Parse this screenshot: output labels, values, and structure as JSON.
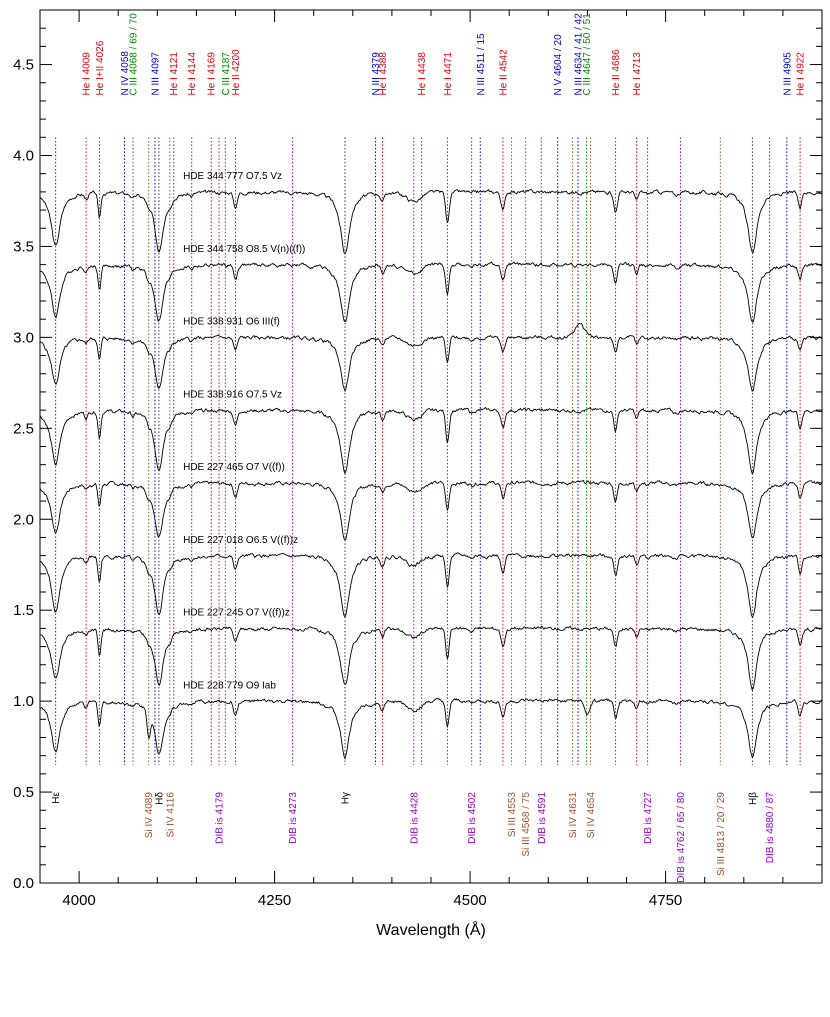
{
  "chart_data": {
    "type": "line",
    "title": "",
    "xlabel": "Wavelength (Å)",
    "ylabel": "",
    "xlim": [
      3950,
      4950
    ],
    "ylim": [
      0.0,
      4.8
    ],
    "x_ticks": [
      4000,
      4250,
      4500,
      4750
    ],
    "x_tick_labels": [
      "4000",
      "4250",
      "4500",
      "4750"
    ],
    "y_ticks": [
      0.0,
      0.5,
      1.0,
      1.5,
      2.0,
      2.5,
      3.0,
      3.5,
      4.0,
      4.5
    ],
    "y_tick_labels": [
      "0.0",
      "0.5",
      "1.0",
      "1.5",
      "2.0",
      "2.5",
      "3.0",
      "3.5",
      "4.0",
      "4.5"
    ],
    "grid": false,
    "legend": "none",
    "series": [
      {
        "name": "HDE 344 777   O7.5 Vz",
        "offset": 3.8,
        "variant": 0
      },
      {
        "name": "HDE 344 758   O8.5 V(n)((f))",
        "offset": 3.4,
        "variant": 1
      },
      {
        "name": "HDE 338 931   O6 III(f)",
        "offset": 3.0,
        "variant": 2
      },
      {
        "name": "HDE 338 916   O7.5 Vz",
        "offset": 2.6,
        "variant": 3
      },
      {
        "name": "HDE 227 465   O7 V((f))",
        "offset": 2.2,
        "variant": 4
      },
      {
        "name": "HDE 227 018   O6.5 V((f))z",
        "offset": 1.8,
        "variant": 5
      },
      {
        "name": "HDE 227 245   O7 V((f))z",
        "offset": 1.4,
        "variant": 6
      },
      {
        "name": "HDE 228 779   O9 Iab",
        "offset": 1.0,
        "variant": 7
      }
    ],
    "balmer_lines": [
      {
        "name": "Hε",
        "wave": 3970
      },
      {
        "name": "Hδ",
        "wave": 4102
      },
      {
        "name": "Hγ",
        "wave": 4340
      },
      {
        "name": "Hβ",
        "wave": 4861
      }
    ],
    "top_lines": [
      {
        "label": "He I 4009",
        "wave": 4009,
        "color": "#e8000b"
      },
      {
        "label": "He I+II 4026",
        "wave": 4026,
        "color": "#e8000b"
      },
      {
        "label": "N IV 4058",
        "wave": 4058,
        "color": "#0000e0"
      },
      {
        "label": "C III 4068 / 69 / 70",
        "wave": 4069,
        "color": "#008a00"
      },
      {
        "label": "N III 4097",
        "wave": 4097,
        "color": "#0000e0"
      },
      {
        "label": "He I 4121",
        "wave": 4121,
        "color": "#e8000b"
      },
      {
        "label": "He I 4144",
        "wave": 4144,
        "color": "#e8000b"
      },
      {
        "label": "He I 4169",
        "wave": 4169,
        "color": "#e8000b"
      },
      {
        "label": "C III 4187",
        "wave": 4187,
        "color": "#008a00"
      },
      {
        "label": "He II 4200",
        "wave": 4200,
        "color": "#e8000b"
      },
      {
        "label": "N III 4379",
        "wave": 4379,
        "color": "#0000e0"
      },
      {
        "label": "He I 4388",
        "wave": 4388,
        "color": "#e8000b"
      },
      {
        "label": "He I 4438",
        "wave": 4438,
        "color": "#e8000b"
      },
      {
        "label": "He I 4471",
        "wave": 4471,
        "color": "#e8000b"
      },
      {
        "label": "N III 4511 / 15",
        "wave": 4513,
        "color": "#0000e0"
      },
      {
        "label": "He II 4542",
        "wave": 4542,
        "color": "#e8000b"
      },
      {
        "label": "N V 4604 / 20",
        "wave": 4612,
        "color": "#0000e0"
      },
      {
        "label": "N III 4634 / 41 / 42",
        "wave": 4638,
        "color": "#0000e0"
      },
      {
        "label": "C III 4647 / 50 / 51",
        "wave": 4649,
        "color": "#008a00"
      },
      {
        "label": "He II 4686",
        "wave": 4686,
        "color": "#e8000b"
      },
      {
        "label": "He I 4713",
        "wave": 4713,
        "color": "#e8000b"
      },
      {
        "label": "N III 4905",
        "wave": 4905,
        "color": "#0000e0"
      },
      {
        "label": "He I 4922",
        "wave": 4922,
        "color": "#e8000b"
      }
    ],
    "bottom_lines": [
      {
        "label": "Si IV 4089",
        "wave": 4089,
        "color": "#a0522d"
      },
      {
        "label": "Si IV 4116",
        "wave": 4116,
        "color": "#a0522d"
      },
      {
        "label": "DIB is 4179",
        "wave": 4179,
        "color": "#9400d3"
      },
      {
        "label": "DIB is 4273",
        "wave": 4273,
        "color": "#9400d3"
      },
      {
        "label": "DIB is 4428",
        "wave": 4428,
        "color": "#9400d3"
      },
      {
        "label": "DIB is 4502",
        "wave": 4502,
        "color": "#9400d3"
      },
      {
        "label": "Si III 4553",
        "wave": 4553,
        "color": "#a0522d"
      },
      {
        "label": "Si III 4568 / 75",
        "wave": 4571,
        "color": "#a0522d"
      },
      {
        "label": "DIB is 4591",
        "wave": 4591,
        "color": "#9400d3"
      },
      {
        "label": "Si IV 4631",
        "wave": 4631,
        "color": "#a0522d"
      },
      {
        "label": "Si IV 4654",
        "wave": 4654,
        "color": "#a0522d"
      },
      {
        "label": "DIB is 4727",
        "wave": 4727,
        "color": "#9400d3"
      },
      {
        "label": "DIB is 4762 / 65 / 80",
        "wave": 4769,
        "color": "#9400d3"
      },
      {
        "label": "Si III 4813 / 20 / 29",
        "wave": 4820,
        "color": "#a0522d"
      },
      {
        "label": "DIB is 4880 / 87",
        "wave": 4883,
        "color": "#9400d3"
      }
    ]
  }
}
